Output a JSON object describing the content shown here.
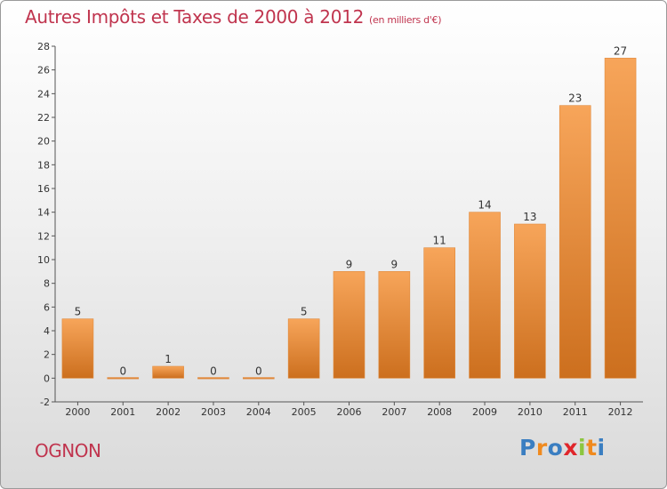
{
  "header": {
    "title": "Autres Impôts et Taxes de 2000 à 2012",
    "subtitle": "(en milliers d'€)"
  },
  "footer": {
    "location": "OGNON",
    "brand": [
      "P",
      "r",
      "o",
      "x",
      "i",
      "t",
      "i"
    ]
  },
  "colors": {
    "title": "#c0344e",
    "bar_top": "#f7a55a",
    "bar_bottom": "#cc6f1e",
    "brand_letters": [
      "#3a7ec1",
      "#f08a1e",
      "#3a7ec1",
      "#e0262b",
      "#8cc63f",
      "#f08a1e",
      "#3a7ec1"
    ]
  },
  "chart_data": {
    "type": "bar",
    "title": "Autres Impôts et Taxes de 2000 à 2012",
    "subtitle": "(en milliers d'€)",
    "categories": [
      "2000",
      "2001",
      "2002",
      "2003",
      "2004",
      "2005",
      "2006",
      "2007",
      "2008",
      "2009",
      "2010",
      "2011",
      "2012"
    ],
    "values": [
      5,
      0,
      1,
      0,
      0,
      5,
      9,
      9,
      11,
      14,
      13,
      23,
      27
    ],
    "ylim": [
      -2,
      28
    ],
    "yticks": [
      -2,
      0,
      2,
      4,
      6,
      8,
      10,
      12,
      14,
      16,
      18,
      20,
      22,
      24,
      26,
      28
    ],
    "grid": false,
    "data_labels": true
  }
}
